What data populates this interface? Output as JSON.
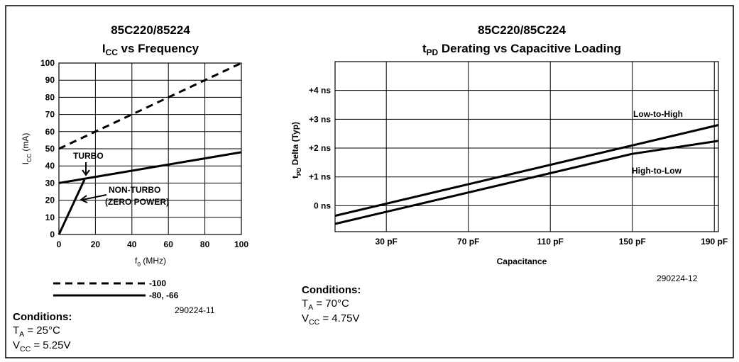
{
  "chart_data": [
    {
      "type": "line",
      "title": "85C220/85224",
      "subtitle": {
        "main": "I",
        "sub": "CC",
        "rest": " vs Frequency"
      },
      "ylabel": {
        "main": "I",
        "sub": "CC",
        "rest": " (mA)"
      },
      "xlabel": {
        "main": "f",
        "sub": "0",
        "rest": " (MHz)"
      },
      "xlim": [
        0,
        100
      ],
      "ylim": [
        0,
        100
      ],
      "xticks": [
        0,
        20,
        40,
        60,
        80,
        100
      ],
      "yticks": [
        0,
        10,
        20,
        30,
        40,
        50,
        60,
        70,
        80,
        90,
        100
      ],
      "grid": true,
      "series": [
        {
          "name": "-100",
          "dash": true,
          "color": "#000000",
          "x": [
            0,
            100
          ],
          "values": [
            50,
            100
          ]
        },
        {
          "name": "-80, -66",
          "color": "#000000",
          "x": [
            0,
            100
          ],
          "values": [
            30,
            48
          ]
        },
        {
          "color": "#000000",
          "x": [
            0,
            14
          ],
          "values": [
            0,
            32
          ]
        }
      ],
      "annotations": [
        "TURBO",
        "NON-TURBO",
        "(ZERO POWER)"
      ],
      "figure_id": "290224-11",
      "conditions": {
        "label": "Conditions:",
        "lines": [
          {
            "main": "T",
            "sub": "A",
            "rest": " = 25°C"
          },
          {
            "main": "V",
            "sub": "CC",
            "rest": " = 5.25V"
          }
        ]
      }
    },
    {
      "type": "line",
      "title": "85C220/85C224",
      "subtitle": {
        "main": "t",
        "sub": "PD",
        "rest": " Derating vs Capacitive Loading"
      },
      "ylabel": {
        "main": "t",
        "sub": "PD",
        "rest": " Delta (Typ)"
      },
      "xlabel": "Capacitance",
      "xlim": [
        5,
        192
      ],
      "ylim": [
        -0.9,
        5
      ],
      "xticks": [
        {
          "value": 30,
          "label": "30 pF"
        },
        {
          "value": 70,
          "label": "70 pF"
        },
        {
          "value": 110,
          "label": "110 pF"
        },
        {
          "value": 150,
          "label": "150 pF"
        },
        {
          "value": 190,
          "label": "190 pF"
        }
      ],
      "yticks": [
        {
          "value": 0,
          "label": "0 ns"
        },
        {
          "value": 1,
          "label": "+1 ns"
        },
        {
          "value": 2,
          "label": "+2 ns"
        },
        {
          "value": 3,
          "label": "+3 ns"
        },
        {
          "value": 4,
          "label": "+4 ns"
        }
      ],
      "grid": true,
      "series": [
        {
          "name": "Low-to-High",
          "color": "#000000",
          "x": [
            5,
            192
          ],
          "values": [
            -0.35,
            2.8
          ]
        },
        {
          "name": "High-to-Low",
          "color": "#000000",
          "x": [
            5,
            150,
            192
          ],
          "values": [
            -0.63,
            1.8,
            2.25
          ]
        }
      ],
      "figure_id": "290224-12",
      "conditions": {
        "label": "Conditions:",
        "lines": [
          {
            "main": "T",
            "sub": "A",
            "rest": " = 70°C"
          },
          {
            "main": "V",
            "sub": "CC",
            "rest": " = 4.75V"
          }
        ]
      }
    }
  ]
}
